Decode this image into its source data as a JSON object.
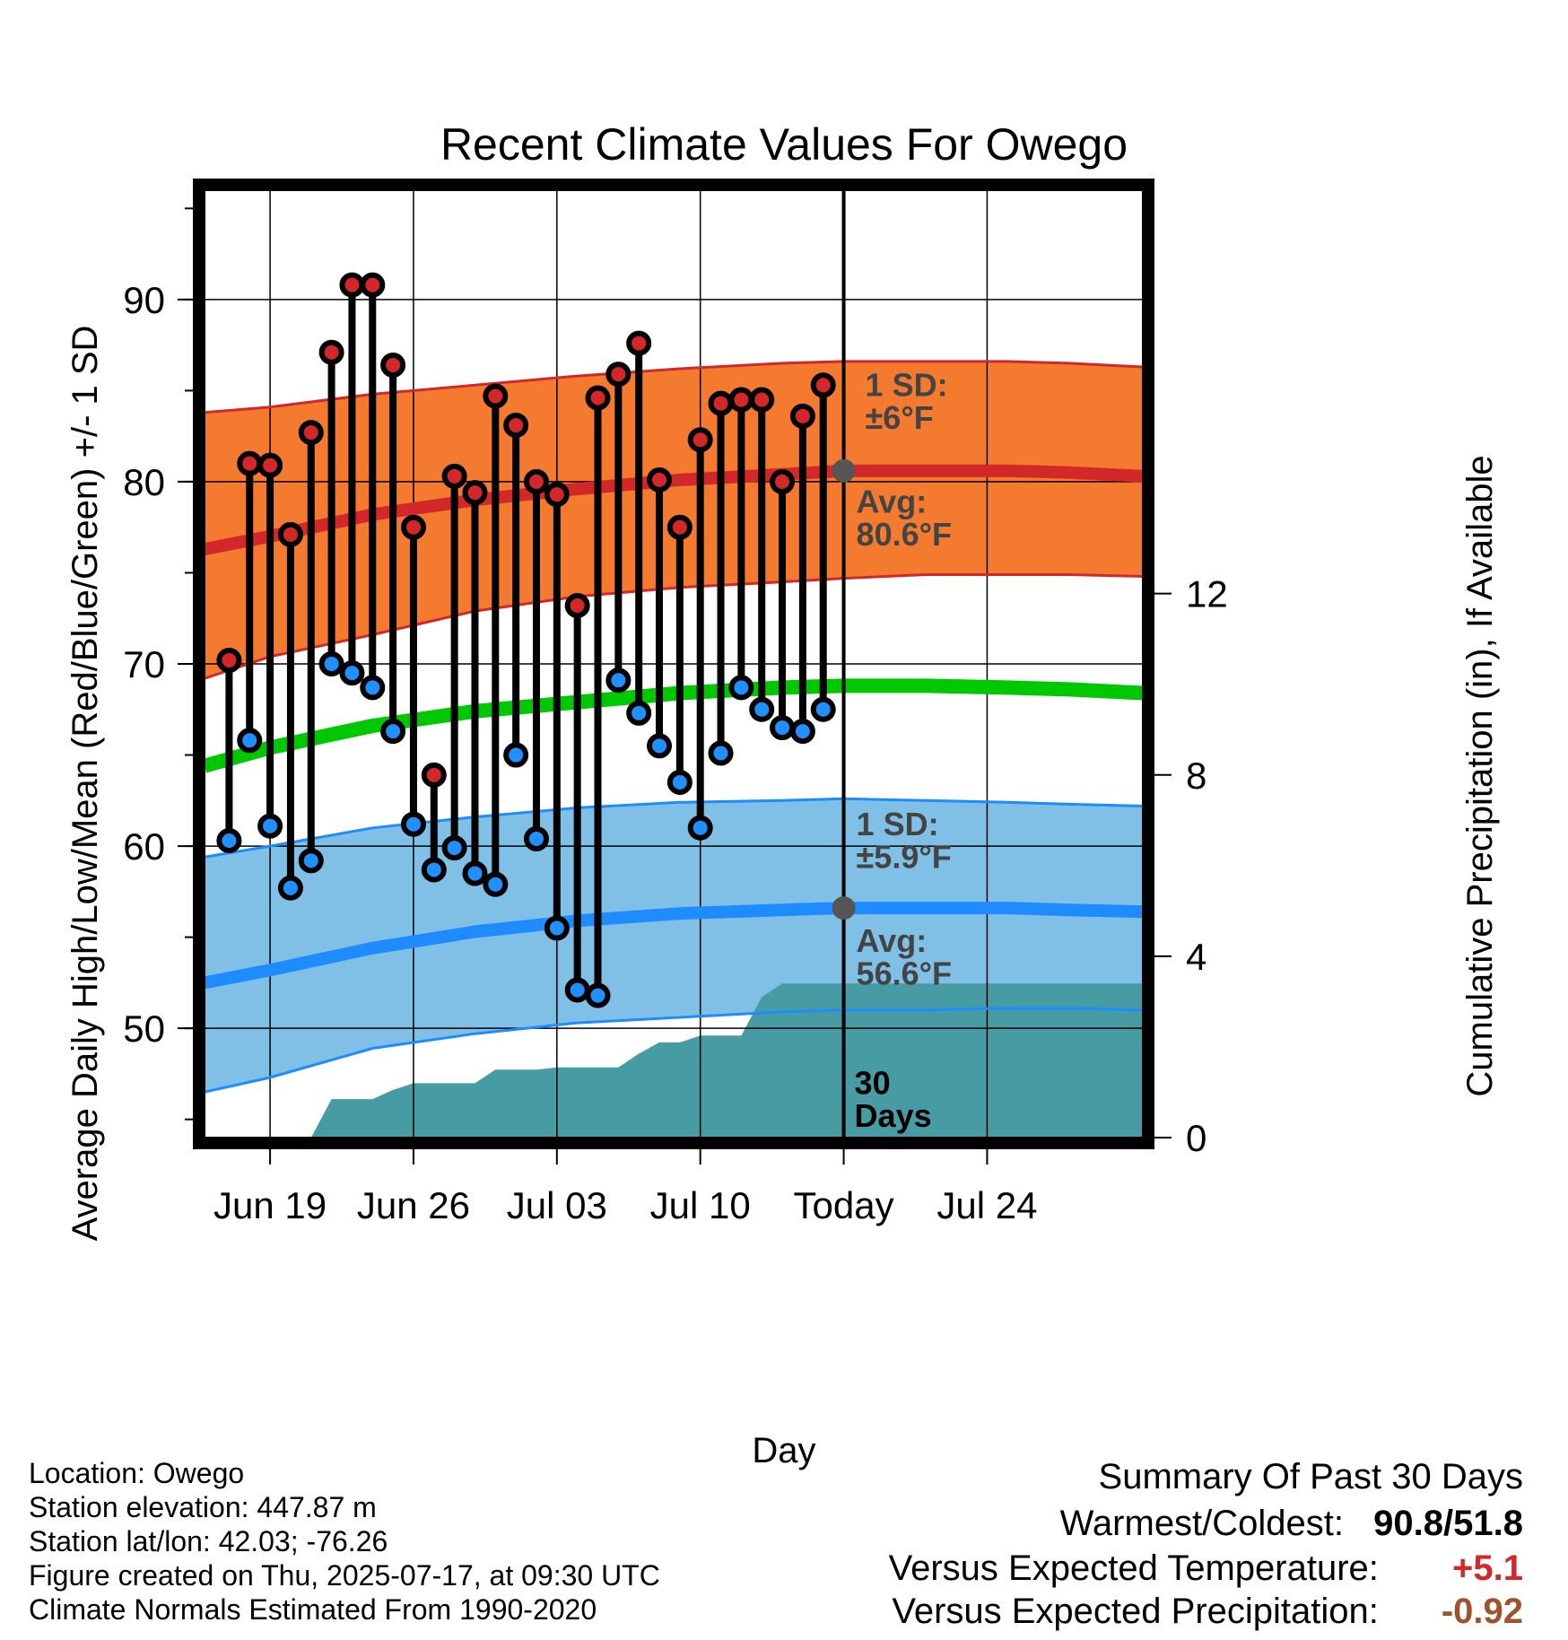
{
  "chart_data": {
    "type": "line",
    "title": "Recent Climate Values For Owego",
    "xlabel": "Day",
    "ylabel": "Average Daily High/Low/Mean (Red/Blue/Green) +/- 1 SD",
    "y2label": "Cumulative Precipitation (in), If Available",
    "ylim": [
      44,
      96
    ],
    "y2lim": [
      0,
      20.9
    ],
    "xlim": [
      -3.2,
      42.6
    ],
    "x_ticks": [
      {
        "day": 0,
        "label": "Jun 19"
      },
      {
        "day": 7,
        "label": "Jun 26"
      },
      {
        "day": 14,
        "label": "Jul 03"
      },
      {
        "day": 21,
        "label": "Jul 10"
      },
      {
        "day": 28,
        "label": "Today"
      },
      {
        "day": 35,
        "label": "Jul 24"
      }
    ],
    "y_ticks": [
      50,
      60,
      70,
      80,
      90
    ],
    "y2_ticks": [
      0,
      4,
      8,
      12
    ],
    "grid": true,
    "today_day": 28,
    "days": [
      -2,
      -1,
      0,
      1,
      2,
      3,
      4,
      5,
      6,
      7,
      8,
      9,
      10,
      11,
      12,
      13,
      14,
      15,
      16,
      17,
      18,
      19,
      20,
      21,
      22,
      23,
      24,
      25,
      26,
      27
    ],
    "daily_high": [
      70.2,
      81.0,
      80.9,
      77.1,
      82.7,
      87.1,
      90.8,
      90.8,
      86.4,
      77.5,
      63.9,
      80.3,
      79.4,
      84.7,
      83.1,
      80.0,
      79.3,
      73.2,
      84.6,
      85.9,
      87.6,
      80.1,
      77.5,
      82.3,
      84.3,
      84.5,
      84.5,
      80.0,
      83.6,
      85.3
    ],
    "daily_low": [
      60.3,
      65.8,
      61.1,
      57.7,
      59.2,
      70.0,
      69.5,
      68.7,
      66.3,
      61.2,
      58.7,
      59.9,
      58.5,
      57.9,
      65.0,
      60.4,
      55.5,
      52.1,
      51.8,
      69.1,
      67.3,
      65.5,
      63.5,
      61.0,
      65.1,
      68.7,
      67.5,
      66.5,
      66.3,
      67.5
    ],
    "normal_high": {
      "x": [
        -3.2,
        0,
        5,
        10,
        15,
        20,
        25,
        28,
        32,
        36,
        39,
        42.6
      ],
      "mean": [
        76.3,
        77.0,
        78.2,
        79.0,
        79.6,
        80.1,
        80.4,
        80.6,
        80.6,
        80.6,
        80.5,
        80.3
      ],
      "upper": [
        83.8,
        84.1,
        84.8,
        85.3,
        85.8,
        86.2,
        86.5,
        86.6,
        86.6,
        86.6,
        86.5,
        86.3
      ],
      "lower": [
        69.2,
        70.4,
        71.6,
        72.9,
        73.7,
        74.2,
        74.5,
        74.7,
        74.9,
        74.9,
        74.9,
        74.8
      ]
    },
    "normal_mean": {
      "x": [
        -3.2,
        0,
        5,
        10,
        15,
        20,
        25,
        28,
        32,
        36,
        39,
        42.6
      ],
      "mean": [
        64.4,
        65.4,
        66.6,
        67.4,
        67.9,
        68.4,
        68.7,
        68.8,
        68.8,
        68.7,
        68.6,
        68.4
      ]
    },
    "normal_low": {
      "x": [
        -3.2,
        0,
        5,
        10,
        15,
        20,
        25,
        28,
        32,
        36,
        39,
        42.6
      ],
      "mean": [
        52.5,
        53.2,
        54.4,
        55.3,
        55.9,
        56.3,
        56.5,
        56.6,
        56.6,
        56.6,
        56.5,
        56.4
      ],
      "upper": [
        59.4,
        60.0,
        61.0,
        61.6,
        62.1,
        62.4,
        62.5,
        62.6,
        62.5,
        62.4,
        62.3,
        62.2
      ],
      "lower": [
        46.5,
        47.3,
        48.9,
        49.7,
        50.3,
        50.6,
        50.9,
        51.0,
        51.0,
        51.1,
        51.1,
        51.0
      ]
    },
    "precip": {
      "x": [
        1.0,
        2.0,
        3.0,
        4.0,
        5.0,
        6.0,
        7.0,
        8.0,
        9.0,
        10.0,
        11.0,
        12.0,
        13.0,
        14.0,
        15.0,
        16.0,
        17.0,
        18.0,
        19.0,
        20.0,
        21.0,
        22.0,
        23.0,
        24.0,
        25.0,
        26.0,
        27.0,
        28.0,
        42.6
      ],
      "cumulative": [
        0.0,
        0.0,
        0.85,
        0.85,
        0.85,
        1.05,
        1.2,
        1.2,
        1.2,
        1.2,
        1.5,
        1.5,
        1.5,
        1.55,
        1.55,
        1.55,
        1.55,
        1.85,
        2.1,
        2.1,
        2.25,
        2.25,
        2.25,
        3.1,
        3.4,
        3.4,
        3.4,
        3.4,
        3.4
      ]
    },
    "annotations": {
      "high_sd": "1 SD:",
      "high_sd_value": "±6°F",
      "high_avg": "Avg:",
      "high_avg_value": "80.6°F",
      "low_sd": "1 SD:",
      "low_sd_value": "±5.9°F",
      "low_avg": "Avg:",
      "low_avg_value": "56.6°F",
      "days_count": "30",
      "days_word": "Days"
    },
    "colors": {
      "high_band": "#f47a30",
      "high_line": "#d2282a",
      "high_edge": "#d2282a",
      "mean_line": "#00c800",
      "low_band": "#80bfe6",
      "low_line": "#1e8cff",
      "low_edge": "#1e8cff",
      "precip": "#479ba3",
      "high_dot": "#d2282a",
      "low_dot": "#2090ff",
      "today_dot": "#555555",
      "annotation": "#444444"
    }
  },
  "info": {
    "location": "Location: Owego",
    "elevation": "Station elevation: 447.87 m",
    "latlon": "Station lat/lon: 42.03; -76.26",
    "created": "Figure created on Thu, 2025-07-17, at 09:30 UTC",
    "normals": "Climate Normals Estimated From 1990-2020"
  },
  "summary": {
    "title": "Summary Of Past 30 Days",
    "warm_cold_label": "Warmest/Coldest:",
    "warmest": "90.8",
    "slash": "/",
    "coldest": "51.8",
    "temp_label": "Versus Expected Temperature:",
    "temp_value": "+5.1",
    "temp_color": "#d2282a",
    "precip_label": "Versus Expected Precipitation:",
    "precip_value": "-0.92",
    "precip_color": "#a0522d"
  }
}
